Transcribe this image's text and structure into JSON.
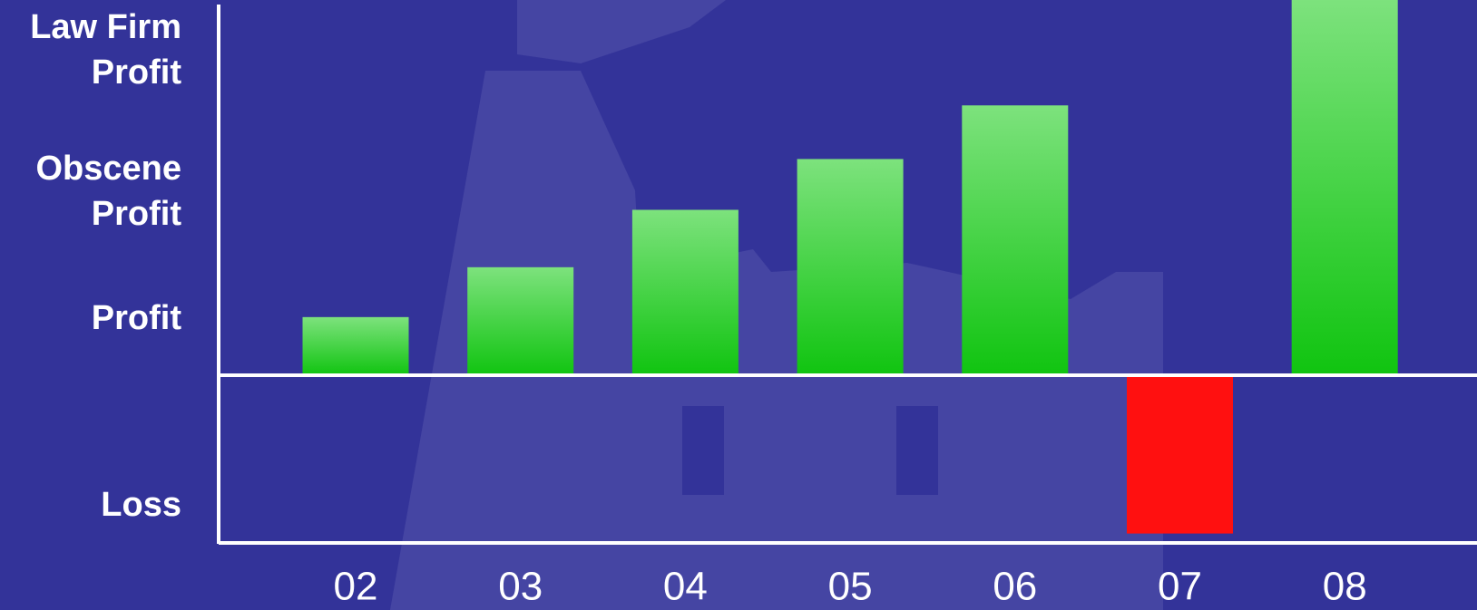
{
  "chart_data": {
    "type": "bar",
    "categories": [
      "02",
      "03",
      "04",
      "05",
      "06",
      "07",
      "08"
    ],
    "values": [
      62,
      115,
      176,
      230,
      287,
      -168,
      399
    ],
    "color": "#7de27d",
    "color_bottom": "#10c410",
    "negative_color": "#ff1010",
    "ylim": [
      -178,
      399
    ],
    "yticks": [
      {
        "value": 346,
        "label": "Law Firm Profit"
      },
      {
        "value": 196,
        "label": "Obscene Profit"
      },
      {
        "value": 61,
        "label": "Profit"
      },
      {
        "value": -138,
        "label": "Loss"
      }
    ],
    "grid": false
  }
}
